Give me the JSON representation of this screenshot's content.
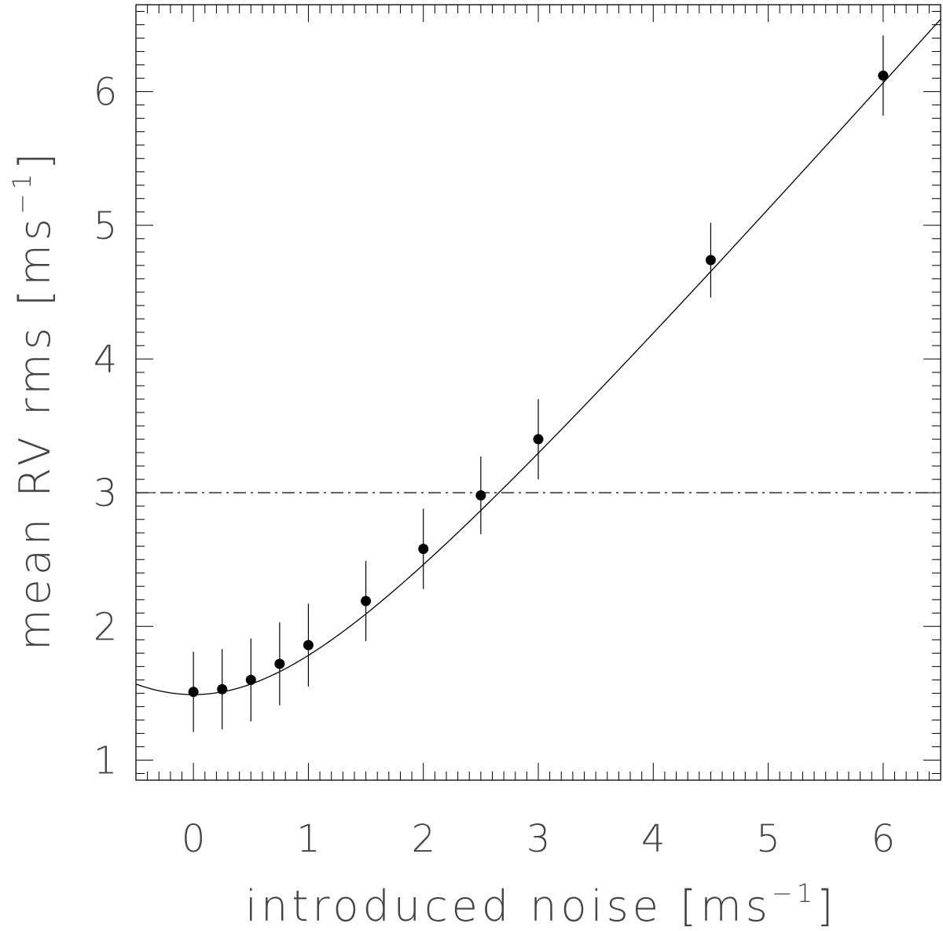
{
  "chart_data": {
    "type": "scatter",
    "title": "",
    "xlabel": "introduced noise",
    "xlabel_unit_main": "ms",
    "xlabel_unit_exp": "−1",
    "ylabel": "mean RV rms",
    "ylabel_unit_main": "ms",
    "ylabel_unit_exp": "−1",
    "xlim": [
      -0.5,
      6.5
    ],
    "ylim": [
      0.85,
      6.65
    ],
    "xticks": [
      "0",
      "1",
      "2",
      "3",
      "4",
      "5",
      "6"
    ],
    "yticks": [
      "1",
      "2",
      "3",
      "4",
      "5",
      "6"
    ],
    "points": [
      {
        "x": 0.0,
        "y": 1.51,
        "err": 0.3
      },
      {
        "x": 0.25,
        "y": 1.53,
        "err": 0.3
      },
      {
        "x": 0.5,
        "y": 1.6,
        "err": 0.31
      },
      {
        "x": 0.75,
        "y": 1.72,
        "err": 0.31
      },
      {
        "x": 1.0,
        "y": 1.86,
        "err": 0.31
      },
      {
        "x": 1.5,
        "y": 2.19,
        "err": 0.3
      },
      {
        "x": 2.0,
        "y": 2.58,
        "err": 0.3
      },
      {
        "x": 2.5,
        "y": 2.98,
        "err": 0.29
      },
      {
        "x": 3.0,
        "y": 3.4,
        "err": 0.3
      },
      {
        "x": 4.5,
        "y": 4.74,
        "err": 0.28
      },
      {
        "x": 6.0,
        "y": 6.12,
        "err": 0.3
      }
    ],
    "fit_curve": {
      "form": "sqrt(a^2 + (b*x)^2)",
      "a": 1.49,
      "b": 0.98
    },
    "reference_line": {
      "y": 3.0,
      "style": "dash-dot"
    },
    "grid": false,
    "legend": "none"
  }
}
